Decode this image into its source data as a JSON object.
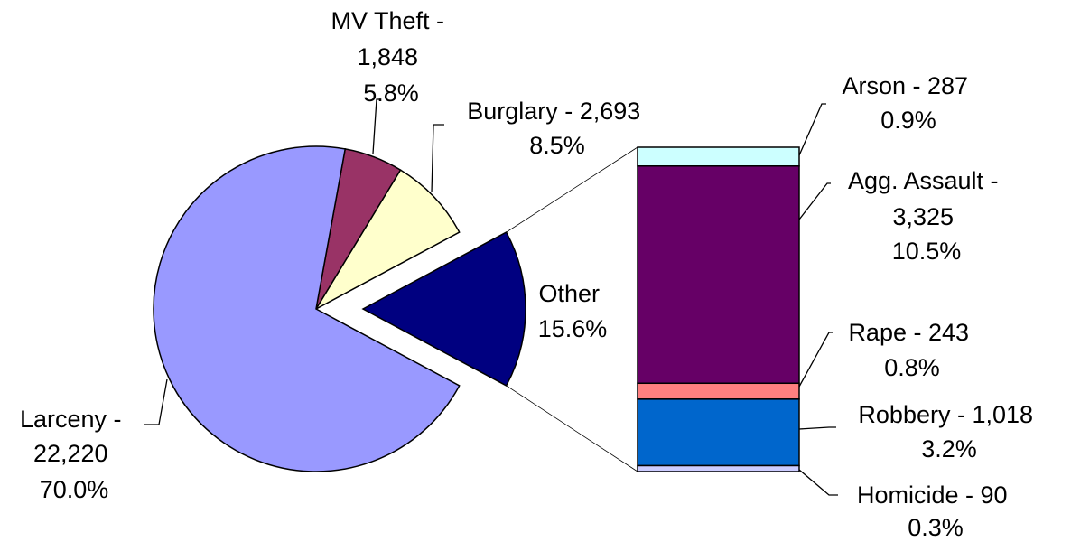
{
  "chart_data": {
    "type": "bar-of-pie",
    "pie": {
      "slices": [
        {
          "key": "larceny",
          "name": "Larceny",
          "value": 22220,
          "value_label": "22,220",
          "pct_label": "70.0%",
          "color": "#9999FF"
        },
        {
          "key": "mvtheft",
          "name": "MV Theft",
          "value": 1848,
          "value_label": "1,848",
          "pct_label": "5.8%",
          "color": "#993366"
        },
        {
          "key": "burglary",
          "name": "Burglary",
          "value": 2693,
          "value_label": "2,693",
          "pct_label": "8.5%",
          "color": "#FFFFCC"
        },
        {
          "key": "other",
          "name": "Other",
          "value": 4963,
          "pct_label": "15.6%",
          "color": "#000080",
          "exploded": true
        }
      ]
    },
    "bar": {
      "stack_order": "top-to-bottom",
      "segments": [
        {
          "key": "arson",
          "name": "Arson",
          "value": 287,
          "value_label": "287",
          "pct_label": "0.9%",
          "color": "#CCFFFF"
        },
        {
          "key": "aggassault",
          "name": "Agg. Assault",
          "value": 3325,
          "value_label": "3,325",
          "pct_label": "10.5%",
          "color": "#660066"
        },
        {
          "key": "rape",
          "name": "Rape",
          "value": 243,
          "value_label": "243",
          "pct_label": "0.8%",
          "color": "#FF8080"
        },
        {
          "key": "robbery",
          "name": "Robbery",
          "value": 1018,
          "value_label": "1,018",
          "pct_label": "3.2%",
          "color": "#0066CC"
        },
        {
          "key": "homicide",
          "name": "Homicide",
          "value": 90,
          "value_label": "90",
          "pct_label": "0.3%",
          "color": "#CCCCFF"
        }
      ]
    }
  },
  "labels": {
    "mvtheft": {
      "line1": "MV Theft -",
      "line2": "1,848",
      "line3": "5.8%"
    },
    "burglary": {
      "line1": "Burglary - 2,693",
      "line2": "8.5%"
    },
    "larceny": {
      "line1": "Larceny -",
      "line2": "22,220",
      "line3": "70.0%"
    },
    "other": {
      "line1": "Other",
      "line2": "15.6%"
    },
    "arson": {
      "line1": "Arson - 287",
      "line2": "0.9%"
    },
    "aggassault": {
      "line1": "Agg. Assault -",
      "line2": "3,325",
      "line3": "10.5%"
    },
    "rape": {
      "line1": "Rape - 243",
      "line2": "0.8%"
    },
    "robbery": {
      "line1": "Robbery - 1,018",
      "line2": "3.2%"
    },
    "homicide": {
      "line1": "Homicide - 90",
      "line2": "0.3%"
    }
  }
}
